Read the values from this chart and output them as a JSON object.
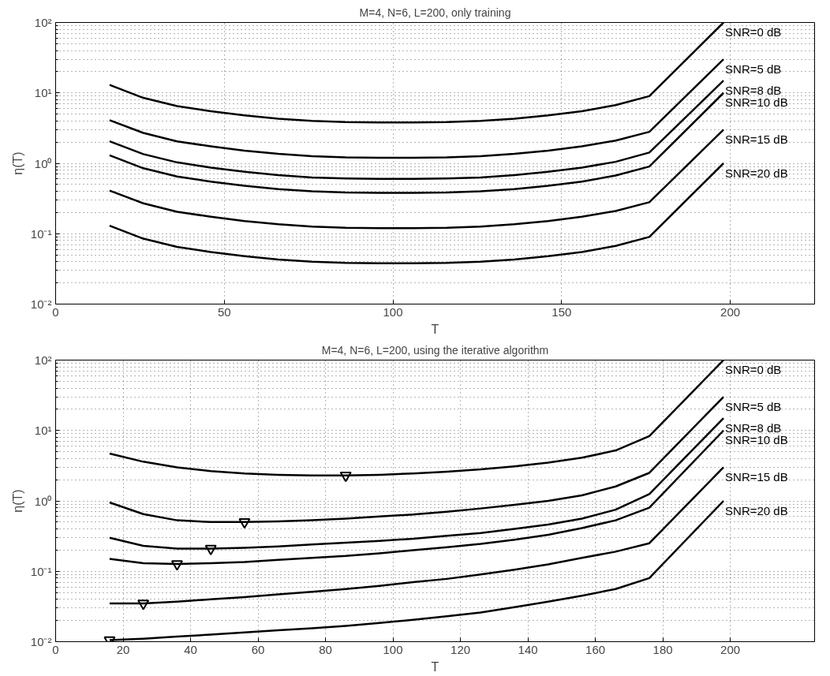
{
  "chart_data": [
    {
      "type": "line",
      "title": "M=4, N=6, L=200, only training",
      "xlabel": "T",
      "ylabel": "η(T)",
      "log": "y",
      "grid": true,
      "marker": "none",
      "line_style": "solid",
      "xlim": [
        0,
        225
      ],
      "xticks": [
        0,
        50,
        100,
        150,
        200
      ],
      "ylim": [
        0.01,
        100
      ],
      "yticks": [
        {
          "value": 0.01,
          "label": "10⁻²"
        },
        {
          "value": 0.1,
          "label": "10⁻¹"
        },
        {
          "value": 1,
          "label": "10⁰"
        },
        {
          "value": 10,
          "label": "10¹"
        },
        {
          "value": 100,
          "label": "10²"
        }
      ],
      "x": [
        16,
        26,
        36,
        46,
        56,
        66,
        76,
        86,
        96,
        106,
        116,
        126,
        136,
        146,
        156,
        166,
        176,
        198
      ],
      "series": [
        {
          "name": "SNR=0 dB",
          "color": "#000000",
          "values": [
            13,
            8.5,
            6.5,
            5.5,
            4.8,
            4.3,
            4.0,
            3.85,
            3.8,
            3.8,
            3.85,
            4.0,
            4.3,
            4.8,
            5.5,
            6.7,
            9,
            100
          ]
        },
        {
          "name": "SNR=5 dB",
          "color": "#000000",
          "values": [
            4.1,
            2.7,
            2.05,
            1.74,
            1.51,
            1.36,
            1.26,
            1.21,
            1.2,
            1.2,
            1.21,
            1.26,
            1.36,
            1.51,
            1.74,
            2.1,
            2.8,
            30
          ]
        },
        {
          "name": "SNR=8 dB",
          "color": "#000000",
          "values": [
            2.05,
            1.35,
            1.03,
            0.87,
            0.76,
            0.68,
            0.63,
            0.61,
            0.6,
            0.6,
            0.61,
            0.63,
            0.68,
            0.76,
            0.87,
            1.05,
            1.42,
            15
          ]
        },
        {
          "name": "SNR=10 dB",
          "color": "#000000",
          "values": [
            1.3,
            0.85,
            0.65,
            0.55,
            0.48,
            0.43,
            0.4,
            0.385,
            0.38,
            0.38,
            0.385,
            0.4,
            0.43,
            0.48,
            0.55,
            0.67,
            0.9,
            10
          ]
        },
        {
          "name": "SNR=15 dB",
          "color": "#000000",
          "values": [
            0.41,
            0.27,
            0.205,
            0.174,
            0.151,
            0.136,
            0.126,
            0.121,
            0.12,
            0.12,
            0.121,
            0.126,
            0.136,
            0.151,
            0.174,
            0.21,
            0.28,
            3
          ]
        },
        {
          "name": "SNR=20 dB",
          "color": "#000000",
          "values": [
            0.13,
            0.085,
            0.065,
            0.055,
            0.048,
            0.043,
            0.04,
            0.0385,
            0.038,
            0.038,
            0.0385,
            0.04,
            0.043,
            0.048,
            0.055,
            0.067,
            0.09,
            1
          ]
        }
      ]
    },
    {
      "type": "line",
      "title": "M=4, N=6, L=200, using the iterative algorithm",
      "xlabel": "T",
      "ylabel": "η(T)",
      "log": "y",
      "grid": true,
      "marker": "none",
      "line_style": "solid",
      "xlim": [
        0,
        225
      ],
      "xticks": [
        0,
        20,
        40,
        60,
        80,
        100,
        120,
        140,
        160,
        180,
        200
      ],
      "ylim": [
        0.01,
        100
      ],
      "yticks": [
        {
          "value": 0.01,
          "label": "10⁻²"
        },
        {
          "value": 0.1,
          "label": "10⁻¹"
        },
        {
          "value": 1,
          "label": "10⁰"
        },
        {
          "value": 10,
          "label": "10¹"
        },
        {
          "value": 100,
          "label": "10²"
        }
      ],
      "x": [
        16,
        26,
        36,
        46,
        56,
        66,
        76,
        86,
        96,
        106,
        116,
        126,
        136,
        146,
        156,
        166,
        176,
        198
      ],
      "series": [
        {
          "name": "SNR=0 dB",
          "color": "#000000",
          "values": [
            4.7,
            3.6,
            3.0,
            2.65,
            2.45,
            2.35,
            2.3,
            2.3,
            2.35,
            2.45,
            2.6,
            2.8,
            3.1,
            3.5,
            4.1,
            5.2,
            8.3,
            100
          ]
        },
        {
          "name": "SNR=5 dB",
          "color": "#000000",
          "values": [
            0.95,
            0.65,
            0.53,
            0.5,
            0.5,
            0.51,
            0.53,
            0.56,
            0.6,
            0.64,
            0.7,
            0.78,
            0.88,
            1.0,
            1.2,
            1.6,
            2.5,
            30
          ]
        },
        {
          "name": "SNR=8 dB",
          "color": "#000000",
          "values": [
            0.3,
            0.23,
            0.21,
            0.21,
            0.215,
            0.225,
            0.24,
            0.255,
            0.27,
            0.29,
            0.32,
            0.35,
            0.4,
            0.46,
            0.56,
            0.75,
            1.25,
            15
          ]
        },
        {
          "name": "SNR=10 dB",
          "color": "#000000",
          "values": [
            0.15,
            0.13,
            0.127,
            0.13,
            0.135,
            0.145,
            0.155,
            0.165,
            0.18,
            0.2,
            0.22,
            0.245,
            0.28,
            0.33,
            0.41,
            0.53,
            0.8,
            10
          ]
        },
        {
          "name": "SNR=15 dB",
          "color": "#000000",
          "values": [
            0.035,
            0.035,
            0.037,
            0.04,
            0.043,
            0.047,
            0.051,
            0.056,
            0.062,
            0.07,
            0.078,
            0.09,
            0.105,
            0.125,
            0.155,
            0.19,
            0.25,
            3
          ]
        },
        {
          "name": "SNR=20 dB",
          "color": "#000000",
          "values": [
            0.0105,
            0.011,
            0.0118,
            0.0126,
            0.0135,
            0.0145,
            0.0155,
            0.0168,
            0.0185,
            0.0205,
            0.023,
            0.026,
            0.031,
            0.037,
            0.045,
            0.056,
            0.08,
            1
          ]
        },
        {
          "type": "scatter",
          "marker": "triangle",
          "color": "#000000",
          "x": [
            86,
            56,
            46,
            36,
            26,
            16
          ],
          "values": [
            2.3,
            0.5,
            0.21,
            0.127,
            0.035,
            0.0105
          ]
        }
      ]
    }
  ]
}
